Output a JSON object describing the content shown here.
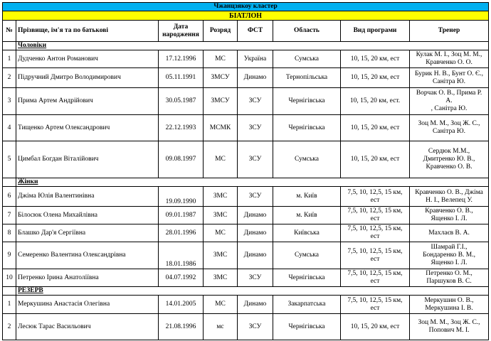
{
  "title": "Чжанцзякоу кластер",
  "sport": "БІАТЛОН",
  "colors": {
    "title_bg": "#00b0f0",
    "sport_bg": "#ffff00"
  },
  "headers": {
    "num": "№",
    "name": "Прізвище, ім'я та по батькові",
    "dob": "Дата народження",
    "rank": "Розряд",
    "fst": "ФСТ",
    "region": "Область",
    "program": "Вид програми",
    "coach": "Тренер"
  },
  "sections": {
    "men": "Чоловіки",
    "women": "Жінки",
    "reserve": "РЕЗЕРВ"
  },
  "men": [
    {
      "n": "1",
      "name": "Дудченко Антон Романович",
      "dob": "17.12.1996",
      "rank": "МС",
      "fst": "Україна",
      "region": "Сумська",
      "program": "10, 15, 20 км, ест",
      "coach": "Кулак М. І., Зоц М. М.,\nКравченко О. О."
    },
    {
      "n": "2",
      "name": "Підручний Дмитро Володимирович",
      "dob": "05.11.1991",
      "rank": "ЗМСУ",
      "fst": "Динамо",
      "region": "Тернопільська",
      "program": "10, 15, 20 км, ест",
      "coach": "Бурик Н. В., Бунт О. Є.,\nСанітра Ю."
    },
    {
      "n": "3",
      "name": "Прима Артем Андрійович",
      "dob": "30.05.1987",
      "rank": "ЗМСУ",
      "fst": "ЗСУ",
      "region": "Чернігівська",
      "program": "10, 15, 20 км, ест.",
      "coach": "Ворчак О. В., Прима Р.\nА.\n, Санітра Ю."
    },
    {
      "n": "4",
      "name": "Тищенко Артем Олександрович",
      "dob": "22.12.1993",
      "rank": "МСМК",
      "fst": "ЗСУ",
      "region": "Чернігівська",
      "program": "10, 15, 20 км, ест",
      "coach": "Зоц М. М.,  Зоц Ж. С.,\nСанітра Ю."
    },
    {
      "n": "5",
      "name": "Цимбал Богдан Віталійович",
      "dob": "09.08.1997",
      "rank": "МС",
      "fst": "ЗСУ",
      "region": "Сумська",
      "program": "10, 15, 20 км, ест",
      "coach": "Сердюк М.М.,\nДмитренко Ю. В.,\nКравченко О. В."
    }
  ],
  "women": [
    {
      "n": "6",
      "name": "Джіма Юлія Валентинівна",
      "dob": "19.09.1990",
      "rank": "ЗМС",
      "fst": "ЗСУ",
      "region": "м. Київ",
      "program": "7,5, 10, 12,5, 15 км,\nест",
      "coach": "Кравченко О. В., Джіма\nН. І., Велепец У."
    },
    {
      "n": "7",
      "name": "Білоcюк Олена Михайлівна",
      "dob": "09.01.1987",
      "rank": "ЗМС",
      "fst": "Динамо",
      "region": "м. Київ",
      "program": "7,5, 10, 12,5, 15 км,\nест",
      "coach": "Кравченко О. В.,\nЯщенко І. Л."
    },
    {
      "n": "8",
      "name": "Блашко Дар'я Сергіївна",
      "dob": "28.01.1996",
      "rank": "МС",
      "fst": "Динамо",
      "region": "Київська",
      "program": "7,5, 10, 12,5, 15 км,\nест",
      "coach": "Махлаєв В. А."
    },
    {
      "n": "9",
      "name": "Семеренко Валентина Олександрівна",
      "dob": "18.01.1986",
      "rank": "ЗМС",
      "fst": "Динамо",
      "region": "Сумська",
      "program": "7,5, 10, 12,5, 15 км,\nест",
      "coach": "Шамрай Г.І.,\nБондаренко В. М.,\nЯщенко І. Л."
    },
    {
      "n": "10",
      "name": "Петренко Ірина Анатоліївна",
      "dob": "04.07.1992",
      "rank": "ЗМС",
      "fst": "ЗСУ",
      "region": "Чернігівська",
      "program": "7,5, 10, 12,5, 15 км,\nест",
      "coach": "Петренко О. М.,\nПаршуков В. С."
    }
  ],
  "reserve": [
    {
      "n": "1",
      "name": "Меркушина Анастасія Олегівна",
      "dob": "14.01.2005",
      "rank": "МС",
      "fst": "Динамо",
      "region": "Закарпатська",
      "program": "7,5, 10, 12,5, 15 км,\nест",
      "coach": "Меркушин О. В.,\nМеркушина І. В."
    },
    {
      "n": "2",
      "name": "Лесюк Тарас Васильович",
      "dob": "21.08.1996",
      "rank": "мс",
      "fst": "ЗСУ",
      "region": "Чернігівська",
      "program": "10, 15, 20 км, ест",
      "coach": "Зоц М. М.,  Зоц Ж. С.,\nПопович М. І."
    }
  ]
}
